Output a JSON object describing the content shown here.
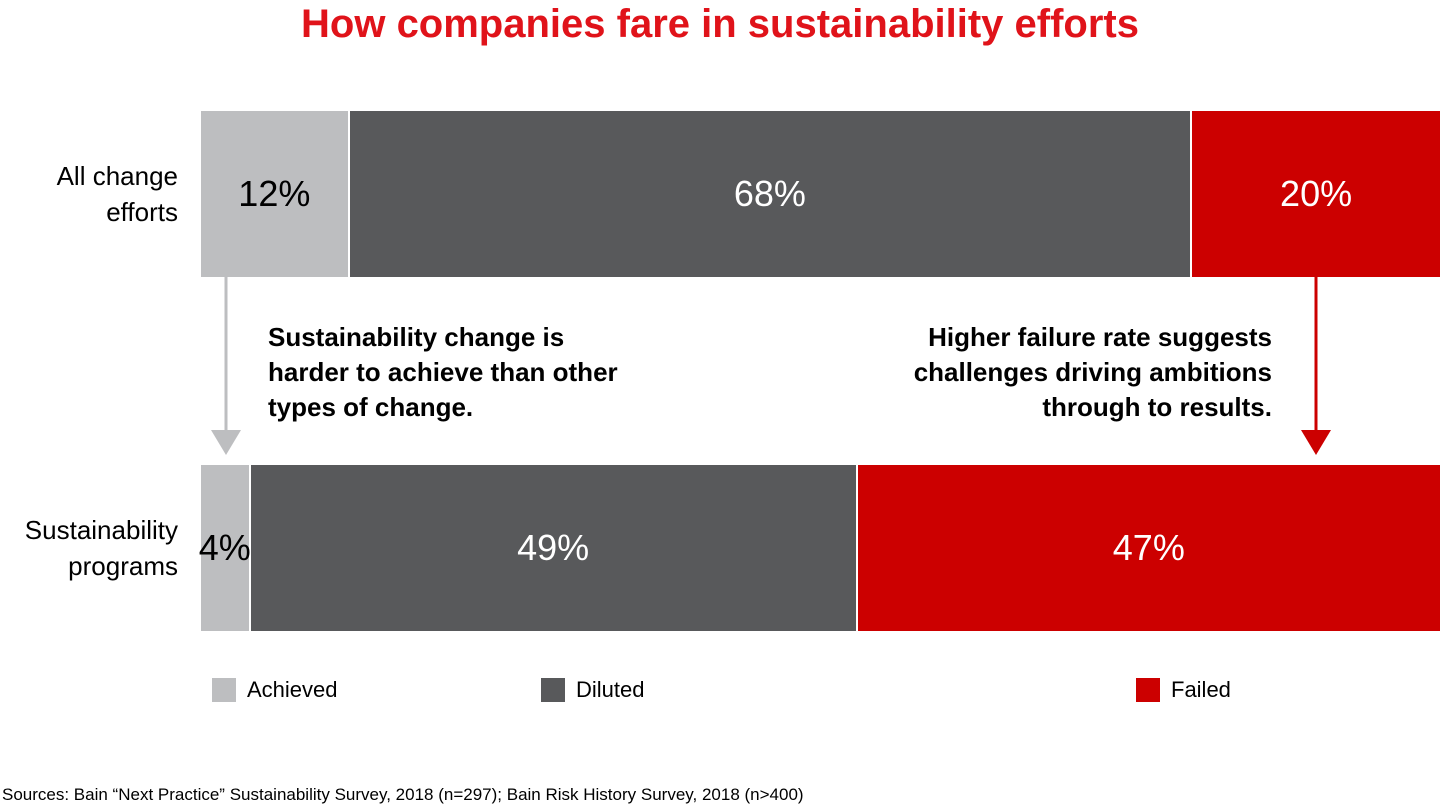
{
  "chart_data": {
    "type": "bar",
    "title": "How companies fare in sustainability efforts",
    "categories": [
      "All change efforts",
      "Sustainability programs"
    ],
    "series": [
      {
        "name": "Achieved",
        "color": "#bdbec0",
        "values": [
          12,
          4
        ],
        "value_labels": [
          "12%",
          "4%"
        ]
      },
      {
        "name": "Diluted",
        "color": "#58595b",
        "values": [
          68,
          49
        ],
        "value_labels": [
          "68%",
          "49%"
        ]
      },
      {
        "name": "Failed",
        "color": "#cc0000",
        "values": [
          20,
          47
        ],
        "value_labels": [
          "20%",
          "47%"
        ]
      }
    ],
    "annotations": [
      "Sustainability change is harder to achieve than other types of change.",
      "Higher failure rate suggests challenges driving ambitions through to results."
    ],
    "legend": "bottom",
    "source": "Sources: Bain “Next Practice” Sustainability Survey, 2018 (n=297); Bain Risk History Survey, 2018 (n>400)"
  }
}
